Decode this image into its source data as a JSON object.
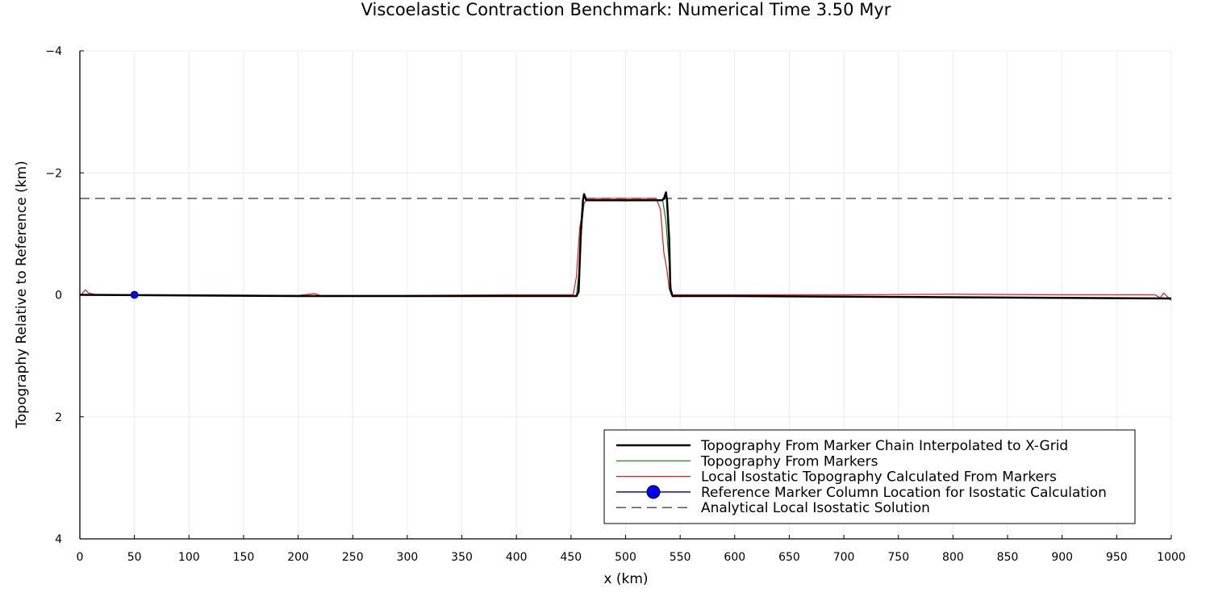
{
  "chart_data": {
    "type": "line",
    "title": "Viscoelastic Contraction Benchmark: Numerical Time 3.50 Myr",
    "xlabel": "x (km)",
    "ylabel": "Topography Relative to Reference (km)",
    "xlim": [
      0,
      1000
    ],
    "ylim": [
      -4,
      4
    ],
    "y_inverted": true,
    "grid": true,
    "legend_position": "lower right",
    "x_ticks": [
      0,
      50,
      100,
      150,
      200,
      250,
      300,
      350,
      400,
      450,
      500,
      550,
      600,
      650,
      700,
      750,
      800,
      850,
      900,
      950,
      1000
    ],
    "y_ticks": [
      -4,
      -2,
      0,
      2,
      4
    ],
    "x_tick_labels": [
      "0",
      "50",
      "100",
      "150",
      "200",
      "250",
      "300",
      "350",
      "400",
      "450",
      "500",
      "550",
      "600",
      "650",
      "700",
      "750",
      "800",
      "850",
      "900",
      "950",
      "1000"
    ],
    "y_tick_labels": [
      "−4",
      "−2",
      "0",
      "2",
      "4"
    ],
    "series": [
      {
        "name": "Topography From Marker Chain Interpolated to X-Grid",
        "color": "#000000",
        "line_width": 2.5,
        "style": "solid",
        "x": [
          0,
          100,
          200,
          300,
          400,
          455,
          457,
          459,
          461,
          462,
          464,
          470,
          500,
          530,
          533,
          535,
          537,
          538,
          540,
          541,
          543,
          550,
          600,
          700,
          800,
          900,
          1000
        ],
        "y": [
          0.0,
          0.01,
          0.02,
          0.02,
          0.02,
          0.02,
          -0.05,
          -1.0,
          -1.55,
          -1.65,
          -1.55,
          -1.55,
          -1.55,
          -1.55,
          -1.55,
          -1.57,
          -1.68,
          -1.55,
          -0.9,
          -0.1,
          0.02,
          0.02,
          0.02,
          0.03,
          0.04,
          0.05,
          0.06
        ]
      },
      {
        "name": "Topography From Markers",
        "color": "#008000",
        "line_width": 1.2,
        "style": "solid",
        "x": [
          0,
          100,
          200,
          300,
          400,
          455,
          458,
          460,
          462,
          464,
          470,
          500,
          530,
          534,
          537,
          540,
          542,
          543,
          550,
          600,
          700,
          800,
          900,
          1000
        ],
        "y": [
          0.0,
          0.01,
          0.02,
          0.02,
          0.01,
          0.02,
          -0.5,
          -1.2,
          -1.5,
          -1.55,
          -1.55,
          -1.54,
          -1.55,
          -1.55,
          -1.2,
          -0.5,
          -0.05,
          0.03,
          0.02,
          0.02,
          0.03,
          0.04,
          0.05,
          0.06
        ]
      },
      {
        "name": "Local Isostatic Topography Calculated From Markers",
        "color": "#e31a1c",
        "line_width": 1.2,
        "style": "solid",
        "x": [
          0,
          2,
          5,
          8,
          15,
          100,
          200,
          215,
          220,
          300,
          400,
          452,
          455,
          458,
          462,
          465,
          470,
          500,
          528,
          532,
          535,
          538,
          540,
          542,
          545,
          550,
          600,
          700,
          800,
          900,
          985,
          990,
          993,
          997,
          1000
        ],
        "y": [
          0.0,
          -0.02,
          -0.08,
          -0.03,
          0.0,
          0.0,
          0.01,
          -0.02,
          0.01,
          0.01,
          0.0,
          0.0,
          -0.3,
          -1.1,
          -1.5,
          -1.58,
          -1.58,
          -1.58,
          -1.58,
          -1.4,
          -0.7,
          -0.4,
          -0.1,
          0.0,
          0.0,
          0.0,
          0.0,
          0.0,
          -0.01,
          0.0,
          0.0,
          0.05,
          -0.03,
          0.04,
          0.09
        ]
      },
      {
        "name": "Reference Marker Column Location for Isostatic Calculation",
        "color": "#0000ff",
        "marker": "circle",
        "style": "solid",
        "x": [
          50
        ],
        "y": [
          0.0
        ]
      },
      {
        "name": "Analytical Local Isostatic Solution",
        "color": "#555555",
        "line_width": 1.5,
        "style": "dashed",
        "x": [
          0,
          1000
        ],
        "y": [
          -1.58,
          -1.58
        ]
      }
    ]
  }
}
